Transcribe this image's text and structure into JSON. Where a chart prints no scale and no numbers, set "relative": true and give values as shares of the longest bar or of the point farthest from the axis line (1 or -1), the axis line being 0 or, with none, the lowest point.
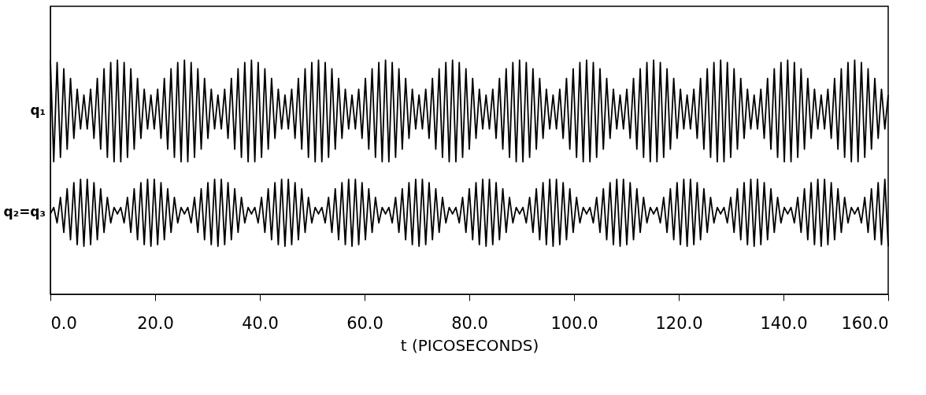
{
  "chart_data": {
    "type": "line",
    "relative": true,
    "xlabel": "t (PICOSECONDS)",
    "xlim": [
      0,
      160
    ],
    "xticks": [
      {
        "value": 0,
        "label": "0.0"
      },
      {
        "value": 20,
        "label": "20.0"
      },
      {
        "value": 40,
        "label": "40.0"
      },
      {
        "value": 60,
        "label": "60.0"
      },
      {
        "value": 80,
        "label": "80.0"
      },
      {
        "value": 100,
        "label": "100.0"
      },
      {
        "value": 120,
        "label": "120.0"
      },
      {
        "value": 140,
        "label": "140.0"
      },
      {
        "value": 160,
        "label": "160.0"
      }
    ],
    "tick_labels": "x",
    "grid": false,
    "marker": "none",
    "line_style": "solid",
    "x": [
      0,
      0.64,
      1.28,
      1.92,
      2.56,
      3.2,
      3.84,
      4.48,
      5.12,
      5.76,
      6.4,
      7.04,
      7.68,
      8.32,
      8.96,
      9.6,
      10.24,
      10.88,
      11.52,
      12.16,
      12.8,
      13.44,
      14.08,
      14.72,
      15.36,
      16,
      16.64,
      17.28,
      17.92,
      18.56,
      19.2,
      19.84,
      20.48,
      21.12,
      21.76,
      22.4,
      23.04,
      23.68,
      24.32,
      24.96,
      25.6,
      26.24,
      26.88,
      27.52,
      28.16,
      28.8,
      29.44,
      30.08,
      30.72,
      31.36,
      32,
      32.64,
      33.28,
      33.92,
      34.56,
      35.2,
      35.84,
      36.48,
      37.12,
      37.76,
      38.4,
      39.04,
      39.68,
      40.32,
      40.96,
      41.6,
      42.24,
      42.88,
      43.52,
      44.16,
      44.8,
      45.44,
      46.08,
      46.72,
      47.36,
      48,
      48.64,
      49.28,
      49.92,
      50.56,
      51.2,
      51.84,
      52.48,
      53.12,
      53.76,
      54.4,
      55.04,
      55.68,
      56.32,
      56.96,
      57.6,
      58.24,
      58.88,
      59.52,
      60.16,
      60.8,
      61.44,
      62.08,
      62.72,
      63.36,
      64,
      64.64,
      65.28,
      65.92,
      66.56,
      67.2,
      67.84,
      68.48,
      69.12,
      69.76,
      70.4,
      71.04,
      71.68,
      72.32,
      72.96,
      73.6,
      74.24,
      74.88,
      75.52,
      76.16,
      76.8,
      77.44,
      78.08,
      78.72,
      79.36,
      80,
      80.64,
      81.28,
      81.92,
      82.56,
      83.2,
      83.84,
      84.48,
      85.12,
      85.76,
      86.4,
      87.04,
      87.68,
      88.32,
      88.96,
      89.6,
      90.24,
      90.88,
      91.52,
      92.16,
      92.8,
      93.44,
      94.08,
      94.72,
      95.36,
      96,
      96.64,
      97.28,
      97.92,
      98.56,
      99.2,
      99.84,
      100.48,
      101.12,
      101.76,
      102.4,
      103.04,
      103.68,
      104.32,
      104.96,
      105.6,
      106.24,
      106.88,
      107.52,
      108.16,
      108.8,
      109.44,
      110.08,
      110.72,
      111.36,
      112,
      112.64,
      113.28,
      113.92,
      114.56,
      115.2,
      115.84,
      116.48,
      117.12,
      117.76,
      118.4,
      119.04,
      119.68,
      120.32,
      120.96,
      121.6,
      122.24,
      122.88,
      123.52,
      124.16,
      124.8,
      125.44,
      126.08,
      126.72,
      127.36,
      128,
      128.64,
      129.28,
      129.92,
      130.56,
      131.2,
      131.84,
      132.48,
      133.12,
      133.76,
      134.4,
      135.04,
      135.68,
      136.32,
      136.96,
      137.6,
      138.24,
      138.88,
      139.52,
      140.16,
      140.8,
      141.44,
      142.08,
      142.72,
      143.36,
      144,
      144.64,
      145.28,
      145.92,
      146.56,
      147.2,
      147.84,
      148.48,
      149.12,
      149.76,
      150.4,
      151.04,
      151.68,
      152.32,
      152.96,
      153.6,
      154.24,
      154.88,
      155.52,
      156.16,
      156.8,
      157.44,
      158.08,
      158.72,
      159.36,
      160
    ],
    "series": [
      {
        "name": "q₁",
        "color": "#000000",
        "values": [
          1.0,
          0.566,
          0.99,
          0.585,
          0.963,
          0.62,
          0.922,
          0.666,
          0.876,
          0.706,
          0.851,
          0.706,
          0.876,
          0.666,
          0.922,
          0.62,
          0.963,
          0.585,
          0.99,
          0.566,
          1.0,
          0.566,
          0.99,
          0.585,
          0.963,
          0.62,
          0.922,
          0.666,
          0.876,
          0.706,
          0.851,
          0.706,
          0.876,
          0.666,
          0.922,
          0.62,
          0.963,
          0.585,
          0.99,
          0.566,
          1.0,
          0.566,
          0.99,
          0.585,
          0.963,
          0.62,
          0.922,
          0.666,
          0.876,
          0.706,
          0.851,
          0.706,
          0.876,
          0.666,
          0.922,
          0.62,
          0.963,
          0.585,
          0.99,
          0.566,
          1.0,
          0.566,
          0.99,
          0.585,
          0.963,
          0.62,
          0.922,
          0.666,
          0.876,
          0.706,
          0.851,
          0.706,
          0.876,
          0.666,
          0.922,
          0.62,
          0.963,
          0.585,
          0.99,
          0.566,
          1.0,
          0.566,
          0.99,
          0.585,
          0.963,
          0.62,
          0.922,
          0.666,
          0.876,
          0.706,
          0.851,
          0.706,
          0.876,
          0.666,
          0.922,
          0.62,
          0.963,
          0.585,
          0.99,
          0.566,
          1.0,
          0.566,
          0.99,
          0.585,
          0.963,
          0.62,
          0.922,
          0.666,
          0.876,
          0.706,
          0.851,
          0.706,
          0.876,
          0.666,
          0.922,
          0.62,
          0.963,
          0.585,
          0.99,
          0.566,
          1.0,
          0.566,
          0.99,
          0.585,
          0.963,
          0.62,
          0.922,
          0.666,
          0.876,
          0.706,
          0.851,
          0.706,
          0.876,
          0.666,
          0.922,
          0.62,
          0.963,
          0.585,
          0.99,
          0.566,
          1.0,
          0.566,
          0.99,
          0.585,
          0.963,
          0.62,
          0.922,
          0.666,
          0.876,
          0.706,
          0.851,
          0.706,
          0.876,
          0.666,
          0.922,
          0.62,
          0.963,
          0.585,
          0.99,
          0.566,
          1.0,
          0.566,
          0.99,
          0.585,
          0.963,
          0.62,
          0.922,
          0.666,
          0.876,
          0.706,
          0.851,
          0.706,
          0.876,
          0.666,
          0.922,
          0.62,
          0.963,
          0.585,
          0.99,
          0.566,
          1.0,
          0.566,
          0.99,
          0.585,
          0.963,
          0.62,
          0.922,
          0.666,
          0.876,
          0.706,
          0.851,
          0.706,
          0.876,
          0.666,
          0.922,
          0.62,
          0.963,
          0.585,
          0.99,
          0.566,
          1.0,
          0.566,
          0.99,
          0.585,
          0.963,
          0.62,
          0.922,
          0.666,
          0.876,
          0.706,
          0.851,
          0.706,
          0.876,
          0.666,
          0.922,
          0.62,
          0.963,
          0.585,
          0.99,
          0.566,
          1.0,
          0.566,
          0.99,
          0.585,
          0.963,
          0.62,
          0.922,
          0.666,
          0.876,
          0.706,
          0.851,
          0.706,
          0.876,
          0.666,
          0.922,
          0.62,
          0.963,
          0.585,
          0.99,
          0.566,
          1.0,
          0.566,
          0.99,
          0.585,
          0.963,
          0.62,
          0.922,
          0.666,
          0.876,
          0.706,
          0.851
        ]
      },
      {
        "name": "q₂=q₃",
        "color": "#000000",
        "values": [
          0.343,
          0.371,
          0.305,
          0.414,
          0.264,
          0.451,
          0.233,
          0.477,
          0.212,
          0.491,
          0.205,
          0.491,
          0.212,
          0.477,
          0.233,
          0.451,
          0.264,
          0.414,
          0.305,
          0.371,
          0.343,
          0.371,
          0.305,
          0.414,
          0.264,
          0.451,
          0.233,
          0.477,
          0.212,
          0.491,
          0.205,
          0.491,
          0.212,
          0.477,
          0.233,
          0.451,
          0.264,
          0.414,
          0.305,
          0.371,
          0.343,
          0.371,
          0.305,
          0.414,
          0.264,
          0.451,
          0.233,
          0.477,
          0.212,
          0.491,
          0.205,
          0.491,
          0.212,
          0.477,
          0.233,
          0.451,
          0.264,
          0.414,
          0.305,
          0.371,
          0.343,
          0.371,
          0.305,
          0.414,
          0.264,
          0.451,
          0.233,
          0.477,
          0.212,
          0.491,
          0.205,
          0.491,
          0.212,
          0.477,
          0.233,
          0.451,
          0.264,
          0.414,
          0.305,
          0.371,
          0.343,
          0.371,
          0.305,
          0.414,
          0.264,
          0.451,
          0.233,
          0.477,
          0.212,
          0.491,
          0.205,
          0.491,
          0.212,
          0.477,
          0.233,
          0.451,
          0.264,
          0.414,
          0.305,
          0.371,
          0.343,
          0.371,
          0.305,
          0.414,
          0.264,
          0.451,
          0.233,
          0.477,
          0.212,
          0.491,
          0.205,
          0.491,
          0.212,
          0.477,
          0.233,
          0.451,
          0.264,
          0.414,
          0.305,
          0.371,
          0.343,
          0.371,
          0.305,
          0.414,
          0.264,
          0.451,
          0.233,
          0.477,
          0.212,
          0.491,
          0.205,
          0.491,
          0.212,
          0.477,
          0.233,
          0.451,
          0.264,
          0.414,
          0.305,
          0.371,
          0.343,
          0.371,
          0.305,
          0.414,
          0.264,
          0.451,
          0.233,
          0.477,
          0.212,
          0.491,
          0.205,
          0.491,
          0.212,
          0.477,
          0.233,
          0.451,
          0.264,
          0.414,
          0.305,
          0.371,
          0.343,
          0.371,
          0.305,
          0.414,
          0.264,
          0.451,
          0.233,
          0.477,
          0.212,
          0.491,
          0.205,
          0.491,
          0.212,
          0.477,
          0.233,
          0.451,
          0.264,
          0.414,
          0.305,
          0.371,
          0.343,
          0.371,
          0.305,
          0.414,
          0.264,
          0.451,
          0.233,
          0.477,
          0.212,
          0.491,
          0.205,
          0.491,
          0.212,
          0.477,
          0.233,
          0.451,
          0.264,
          0.414,
          0.305,
          0.371,
          0.343,
          0.371,
          0.305,
          0.414,
          0.264,
          0.451,
          0.233,
          0.477,
          0.212,
          0.491,
          0.205,
          0.491,
          0.212,
          0.477,
          0.233,
          0.451,
          0.264,
          0.414,
          0.305,
          0.371,
          0.343,
          0.371,
          0.305,
          0.414,
          0.264,
          0.451,
          0.233,
          0.477,
          0.212,
          0.491,
          0.205,
          0.491,
          0.212,
          0.477,
          0.233,
          0.451,
          0.264,
          0.414,
          0.305,
          0.371,
          0.343,
          0.371,
          0.305,
          0.414,
          0.264,
          0.451,
          0.233,
          0.477,
          0.212,
          0.491,
          0.205
        ]
      }
    ]
  }
}
